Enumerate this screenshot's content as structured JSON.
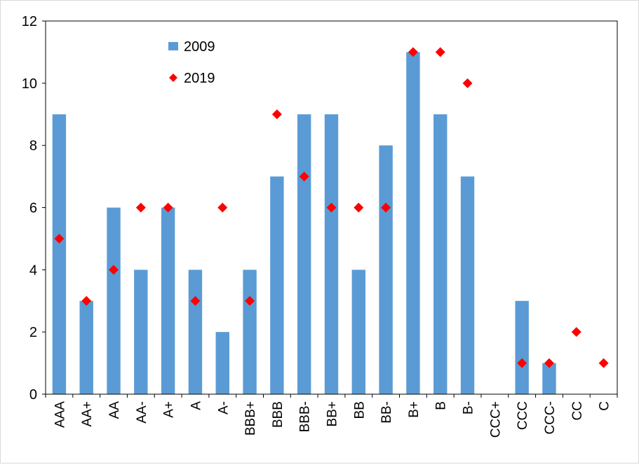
{
  "chart_data": {
    "type": "bar",
    "title": "",
    "xlabel": "",
    "ylabel": "",
    "ylim": [
      0,
      12
    ],
    "yticks": [
      "0",
      "2",
      "4",
      "6",
      "8",
      "10",
      "12"
    ],
    "grid": false,
    "legend_position": "top-left",
    "categories": [
      "AAA",
      "AA+",
      "AA",
      "AA-",
      "A+",
      "A",
      "A-",
      "BBB+",
      "BBB",
      "BBB-",
      "BB+",
      "BB",
      "BB-",
      "B+",
      "B",
      "B-",
      "CCC+",
      "CCC",
      "CCC-",
      "CC",
      "C"
    ],
    "series": [
      {
        "name": "2009",
        "kind": "bar",
        "color": "#5B9BD5",
        "values": [
          9,
          3,
          6,
          4,
          6,
          4,
          2,
          4,
          7,
          9,
          9,
          4,
          8,
          11,
          9,
          7,
          0,
          3,
          1,
          0,
          0
        ]
      },
      {
        "name": "2019",
        "kind": "marker",
        "marker": "diamond",
        "color": "#FF0000",
        "values": [
          5,
          3,
          4,
          6,
          6,
          3,
          6,
          3,
          9,
          7,
          6,
          6,
          6,
          11,
          11,
          10,
          0,
          1,
          1,
          2,
          1
        ]
      }
    ]
  }
}
